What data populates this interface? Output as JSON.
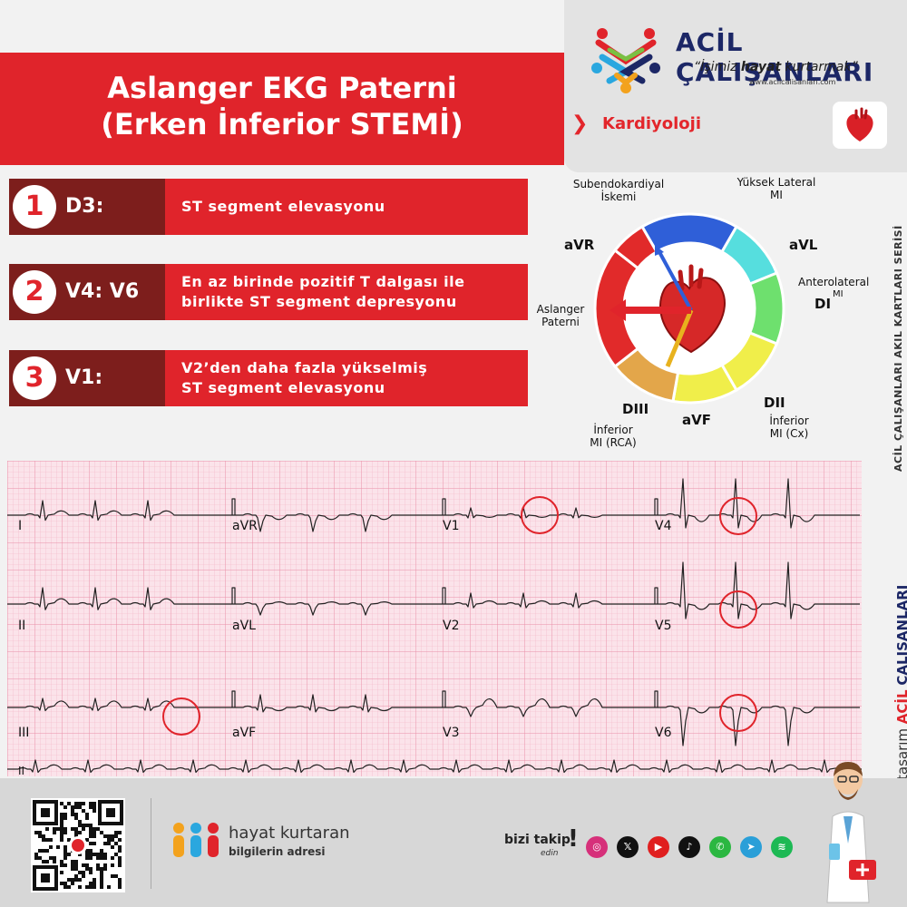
{
  "brand": {
    "name": "ACİL ÇALIŞANLARI",
    "slogan_pre": "“İşimiz ",
    "slogan_bold": "hayat",
    "slogan_post": " kurtarmak”",
    "url": "www.acilcalisanlari.com"
  },
  "category": "Kardiyoloji",
  "title": {
    "line1": "Aslanger EKG Paterni",
    "line2": "(Erken İnferior STEMİ)"
  },
  "criteria": [
    {
      "num": "1",
      "lead": "D3:",
      "line1": "ST segment elevasyonu",
      "line2": ""
    },
    {
      "num": "2",
      "lead": "V4: V6",
      "line1": "En az birinde pozitif T dalgası ile",
      "line2": "birlikte ST segment depresyonu"
    },
    {
      "num": "3",
      "lead": "V1:",
      "line1": "V2’den daha fazla yükselmiş",
      "line2": "ST segment elevasyonu"
    }
  ],
  "axis": {
    "subendo1": "Subendokardiyal",
    "subendo2": "İskemi",
    "highlat1": "Yüksek Lateral",
    "highlat2": "MI",
    "avr": "aVR",
    "avl": "aVL",
    "antero1": "Anterolateral",
    "antero_mi": "MI",
    "di": "DI",
    "aslanger1": "Aslanger",
    "aslanger2": "Paterni",
    "diii": "DIII",
    "avf": "aVF",
    "dii": "DII",
    "infrca1": "İnferior",
    "infrca2": "MI (RCA)",
    "infcx1": "İnferior",
    "infcx2": "MI (Cx)",
    "colors": {
      "blue": "#2f5fd8",
      "cyan": "#56dede",
      "green": "#6ee06e",
      "yellow": "#f0ee4a",
      "orange": "#e3a64a",
      "red": "#e12a2a"
    }
  },
  "ecg_leads": {
    "row1": [
      "I",
      "aVR",
      "V1",
      "V4"
    ],
    "row2": [
      "II",
      "aVL",
      "V2",
      "V5"
    ],
    "row3": [
      "III",
      "aVF",
      "V3",
      "V6"
    ],
    "rhythm": "II"
  },
  "side": {
    "series": "ACİL ÇALIŞANLARI AKIL KARTLARI SERİSİ",
    "design": "tasarım",
    "design_acil": "ACİL",
    "design_cal": "ÇALIŞANLARI"
  },
  "footer": {
    "tagline1": "hayat kurtaran",
    "tagline2": "bilgilerin adresi",
    "follow1": "bizi takip",
    "follow2": "edin",
    "follow_bang": "!"
  },
  "socials": [
    {
      "icon": "instagram-icon",
      "glyph": "◎",
      "color": "#d6307a"
    },
    {
      "icon": "x-icon",
      "glyph": "𝕏",
      "color": "#111111"
    },
    {
      "icon": "youtube-icon",
      "glyph": "▶",
      "color": "#e01f1f"
    },
    {
      "icon": "tiktok-icon",
      "glyph": "♪",
      "color": "#111111"
    },
    {
      "icon": "whatsapp-icon",
      "glyph": "✆",
      "color": "#2bb741"
    },
    {
      "icon": "telegram-icon",
      "glyph": "➤",
      "color": "#2a9fd8"
    },
    {
      "icon": "spotify-icon",
      "glyph": "≋",
      "color": "#1db954"
    }
  ]
}
